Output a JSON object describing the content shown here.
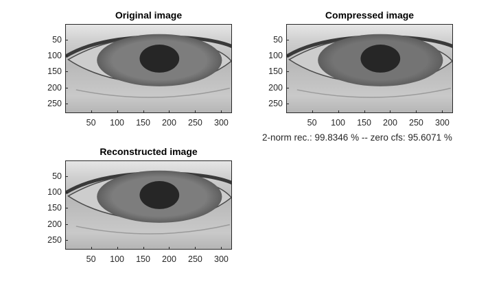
{
  "figure": {
    "background": "#ffffff"
  },
  "chart_data": [
    {
      "type": "image",
      "title": "Original image",
      "xlabel": "",
      "ylabel": "",
      "xlim": [
        0.5,
        320.5
      ],
      "ylim": [
        0.5,
        280.5
      ],
      "y_reversed": true,
      "xticks": [
        50,
        100,
        150,
        200,
        250,
        300
      ],
      "yticks": [
        50,
        100,
        150,
        200,
        250
      ],
      "colormap": "gray",
      "subject": "eye-closeup",
      "pupil_center": [
        180,
        107
      ],
      "iris_color": "#7d7d7d",
      "pupil_color": "#262626",
      "caption": ""
    },
    {
      "type": "image",
      "title": "Compressed image",
      "xlabel": "",
      "ylabel": "",
      "xlim": [
        0.5,
        320.5
      ],
      "ylim": [
        0.5,
        280.5
      ],
      "y_reversed": true,
      "xticks": [
        50,
        100,
        150,
        200,
        250,
        300
      ],
      "yticks": [
        50,
        100,
        150,
        200,
        250
      ],
      "colormap": "gray",
      "subject": "eye-closeup",
      "pupil_center": [
        180,
        107
      ],
      "iris_color": "#747474",
      "pupil_color": "#262626",
      "caption": "2-norm rec.: 99.8346 %  -- zero cfs: 95.6071 %"
    },
    {
      "type": "image",
      "title": "Reconstructed image",
      "xlabel": "",
      "ylabel": "",
      "xlim": [
        0.5,
        320.5
      ],
      "ylim": [
        0.5,
        280.5
      ],
      "y_reversed": true,
      "xticks": [
        50,
        100,
        150,
        200,
        250,
        300
      ],
      "yticks": [
        50,
        100,
        150,
        200,
        250
      ],
      "colormap": "gray",
      "subject": "eye-closeup",
      "pupil_center": [
        180,
        107
      ],
      "iris_color": "#7d7d7d",
      "pupil_color": "#262626",
      "caption": ""
    }
  ]
}
